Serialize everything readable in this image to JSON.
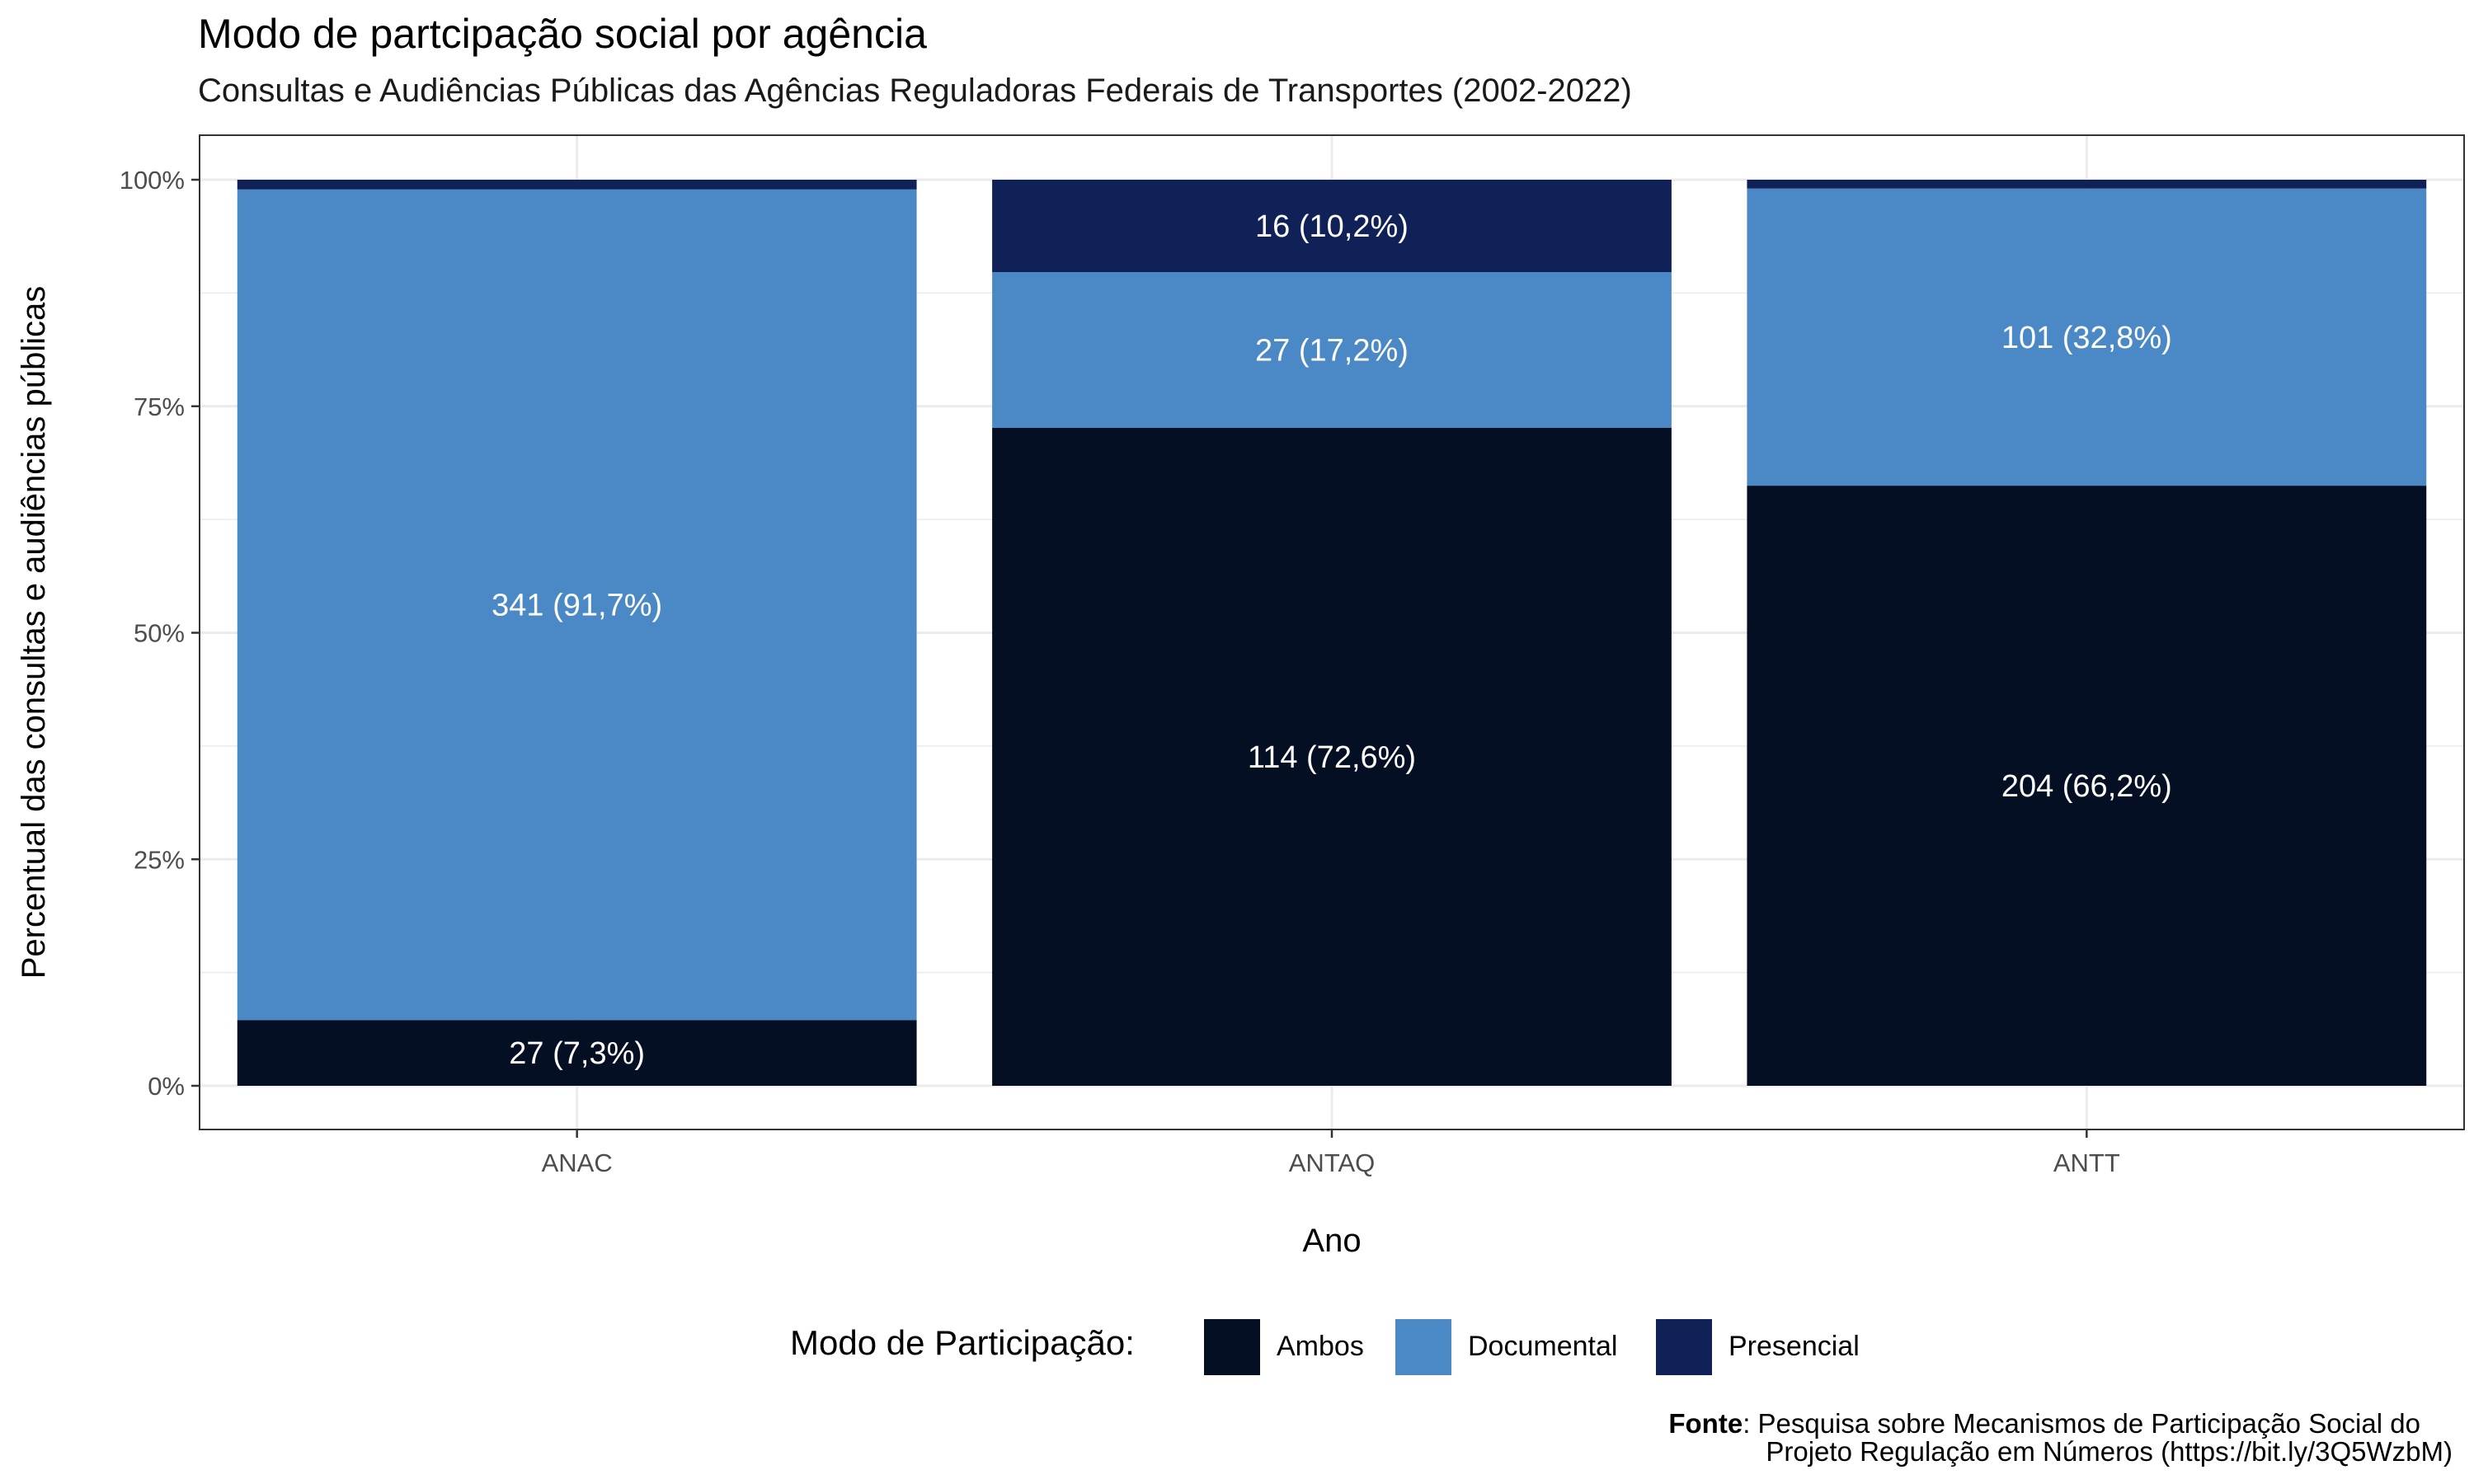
{
  "title": "Modo de partcipação social por agência",
  "subtitle": "Consultas e Audiências Públicas das Agências Reguladoras Federais de Transportes (2002-2022)",
  "colors": {
    "Ambos": "#050f24",
    "Documental": "#4b89c6",
    "Presencial": "#0f2157",
    "grid": "#ebebeb",
    "label": "#ffffff"
  },
  "legend": {
    "title": "Modo de Participação:",
    "items": [
      "Ambos",
      "Documental",
      "Presencial"
    ]
  },
  "caption": {
    "bold": "Fonte",
    "line1": ": Pesquisa sobre Mecanismos de Participação Social do",
    "line2": "Projeto Regulação em Números (https://bit.ly/3Q5WzbM)"
  },
  "chart_data": {
    "type": "bar",
    "stacked": "percent",
    "categories": [
      "ANAC",
      "ANTAQ",
      "ANTT"
    ],
    "series": [
      {
        "name": "Ambos",
        "values": [
          27,
          114,
          204
        ],
        "percent": [
          7.3,
          72.6,
          66.2
        ],
        "labels": [
          "27 (7,3%)",
          "114 (72,6%)",
          "204 (66,2%)"
        ]
      },
      {
        "name": "Documental",
        "values": [
          341,
          27,
          101
        ],
        "percent": [
          91.7,
          17.2,
          32.8
        ],
        "labels": [
          "341 (91,7%)",
          "27 (17,2%)",
          "101 (32,8%)"
        ]
      },
      {
        "name": "Presencial",
        "values": [
          4,
          16,
          3
        ],
        "percent": [
          1.0,
          10.2,
          1.0
        ],
        "labels": [
          "",
          "16 (10,2%)",
          ""
        ]
      }
    ],
    "xlabel": "Ano",
    "ylabel": "Percentual das consultas e audiências públicas",
    "ylim": [
      0,
      1.05
    ],
    "yticks": [
      0,
      0.25,
      0.5,
      0.75,
      1.0
    ],
    "ytick_labels": [
      "0%",
      "25%",
      "50%",
      "75%",
      "100%"
    ],
    "grid": true,
    "legend_position": "bottom"
  }
}
